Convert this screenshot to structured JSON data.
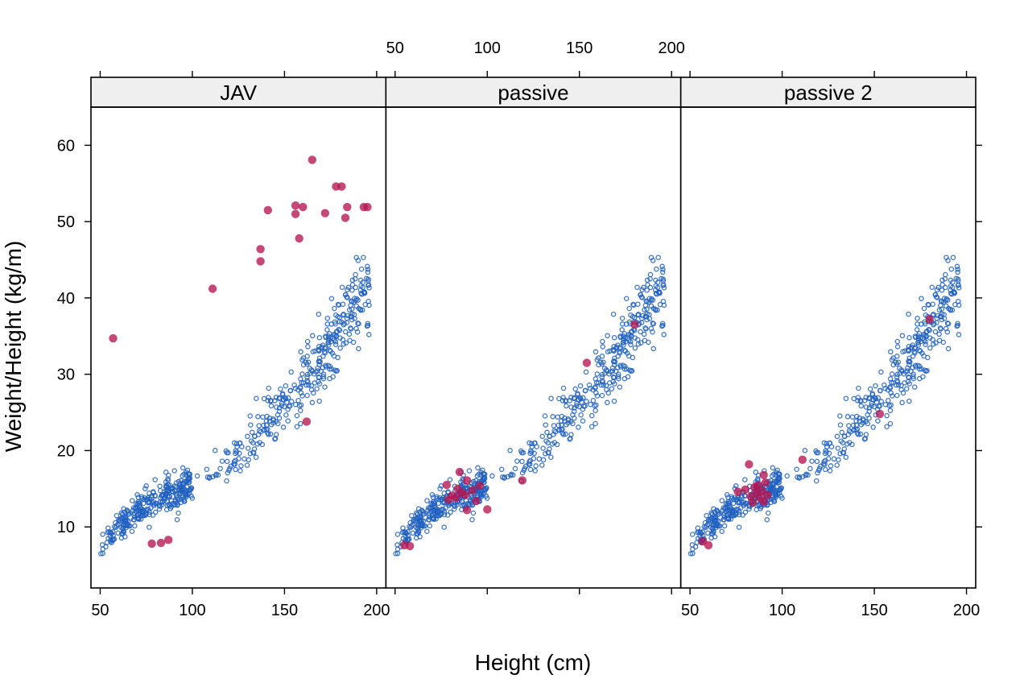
{
  "chart_data": {
    "type": "scatter",
    "layout": "trellis, 3 panels side by side, shared axes",
    "xlabel": "Height (cm)",
    "ylabel": "Weight/Height (kg/m)",
    "xlim": [
      45,
      205
    ],
    "ylim": [
      2,
      65
    ],
    "x_ticks": [
      50,
      100,
      150,
      200
    ],
    "y_ticks": [
      10,
      20,
      30,
      40,
      50,
      60
    ],
    "grid": false,
    "colors": {
      "observed": "#1f5fbf",
      "imputed": "#b5144f",
      "strip": "#efefef"
    },
    "panels": [
      "JAV",
      "passive",
      "passive 2"
    ],
    "observed": {
      "description": "same blue open-circle cloud shown in every panel",
      "anchors": [
        [
          50,
          7
        ],
        [
          52,
          7.5
        ],
        [
          55,
          8.5
        ],
        [
          58,
          9.5
        ],
        [
          62,
          10.5
        ],
        [
          66,
          11.5
        ],
        [
          72,
          12.5
        ],
        [
          80,
          13.5
        ],
        [
          90,
          14.5
        ],
        [
          100,
          15.5
        ],
        [
          110,
          16.5
        ],
        [
          120,
          18
        ],
        [
          130,
          20.5
        ],
        [
          140,
          23.5
        ],
        [
          150,
          26
        ],
        [
          160,
          29
        ],
        [
          170,
          32
        ],
        [
          180,
          36
        ],
        [
          190,
          40
        ],
        [
          196,
          42
        ]
      ],
      "n_points": 650
    },
    "imputed": {
      "JAV": [
        [
          57,
          34.7
        ],
        [
          78,
          7.8
        ],
        [
          83,
          7.9
        ],
        [
          87,
          8.3
        ],
        [
          111,
          41.2
        ],
        [
          137,
          46.4
        ],
        [
          137,
          44.8
        ],
        [
          141,
          51.5
        ],
        [
          156,
          52.1
        ],
        [
          156,
          51.0
        ],
        [
          158,
          47.8
        ],
        [
          160,
          51.9
        ],
        [
          162,
          23.8
        ],
        [
          165,
          58.1
        ],
        [
          172,
          51.1
        ],
        [
          178,
          54.6
        ],
        [
          181,
          54.6
        ],
        [
          183,
          50.5
        ],
        [
          184,
          51.9
        ],
        [
          193,
          51.9
        ],
        [
          195,
          51.9
        ]
      ],
      "passive": [
        [
          55,
          7.6
        ],
        [
          58,
          7.5
        ],
        [
          78,
          15.5
        ],
        [
          79,
          13.6
        ],
        [
          81,
          14.1
        ],
        [
          83,
          13.8
        ],
        [
          84,
          15.0
        ],
        [
          85,
          17.2
        ],
        [
          86,
          14.5
        ],
        [
          88,
          14.2
        ],
        [
          89,
          16.1
        ],
        [
          89,
          12.2
        ],
        [
          92,
          14.8
        ],
        [
          94,
          13.4
        ],
        [
          96,
          15.4
        ],
        [
          100,
          12.3
        ],
        [
          119,
          16.1
        ],
        [
          154,
          31.5
        ],
        [
          180,
          36.5
        ]
      ],
      "passive 2": [
        [
          57,
          8.1
        ],
        [
          60,
          7.6
        ],
        [
          76,
          14.6
        ],
        [
          80,
          14.9
        ],
        [
          82,
          18.2
        ],
        [
          83,
          14.0
        ],
        [
          84,
          13.2
        ],
        [
          85,
          15.2
        ],
        [
          86,
          14.4
        ],
        [
          87,
          15.5
        ],
        [
          88,
          13.8
        ],
        [
          89,
          14.7
        ],
        [
          90,
          13.3
        ],
        [
          90,
          16.8
        ],
        [
          91,
          15.8
        ],
        [
          92,
          14.2
        ],
        [
          111,
          18.8
        ],
        [
          153,
          24.8
        ],
        [
          180,
          37.2
        ]
      ]
    }
  }
}
